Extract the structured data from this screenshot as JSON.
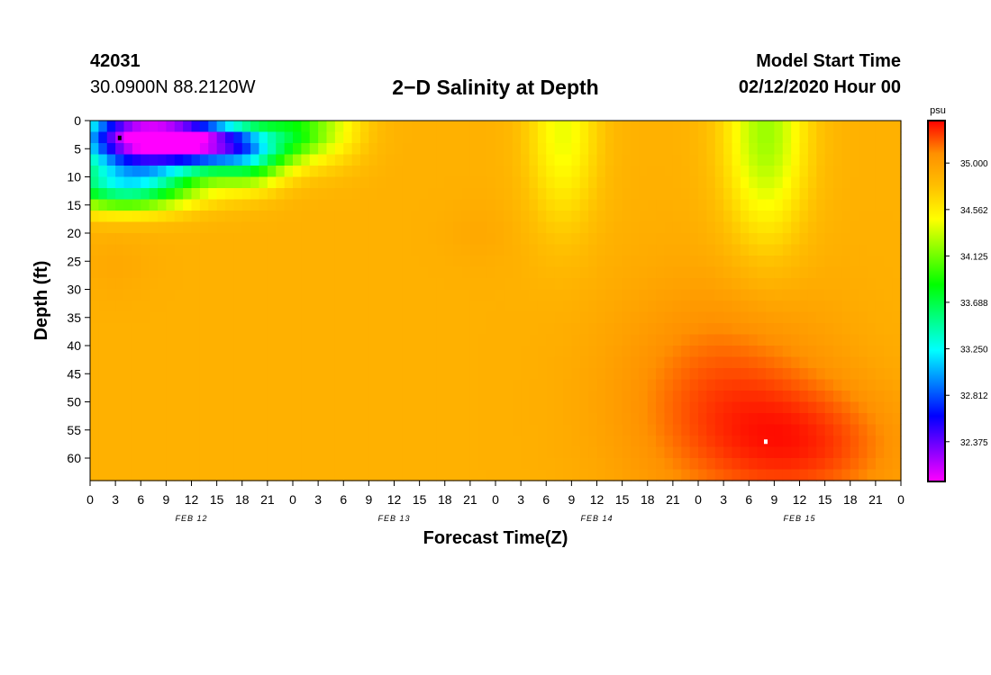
{
  "header": {
    "station_id": "42031",
    "coordinates": "30.0900N 88.2120W",
    "title": "2−D Salinity at Depth",
    "start_label": "Model Start Time",
    "start_value": "02/12/2020 Hour 00"
  },
  "chart_data": {
    "type": "heatmap",
    "title": "2−D Salinity at Depth",
    "xlabel": "Forecast Time(Z)",
    "ylabel": "Depth (ft)",
    "x_hours_range": [
      0,
      96
    ],
    "x_tick_step_hours": 3,
    "x_tick_labels": [
      "0",
      "3",
      "6",
      "9",
      "12",
      "15",
      "18",
      "21",
      "0",
      "3",
      "6",
      "9",
      "12",
      "15",
      "18",
      "21",
      "0",
      "3",
      "6",
      "9",
      "12",
      "15",
      "18",
      "21",
      "0",
      "3",
      "6",
      "9",
      "12",
      "15",
      "18",
      "21",
      "0"
    ],
    "date_labels": [
      {
        "label": "FEB 12",
        "hour": 12
      },
      {
        "label": "FEB 13",
        "hour": 36
      },
      {
        "label": "FEB 14",
        "hour": 60
      },
      {
        "label": "FEB 15",
        "hour": 84
      }
    ],
    "ylim": [
      0,
      64
    ],
    "y_inverted": true,
    "y_ticks": [
      0,
      5,
      10,
      15,
      20,
      25,
      30,
      35,
      40,
      45,
      50,
      55,
      60
    ],
    "colorbar": {
      "unit": "psu",
      "range": [
        32.0,
        35.4
      ],
      "tick_labels": [
        "35.000",
        "34.562",
        "34.125",
        "33.688",
        "33.250",
        "32.812",
        "32.375"
      ],
      "tick_values": [
        35.0,
        34.562,
        34.125,
        33.688,
        33.25,
        32.812,
        32.375
      ],
      "colors": [
        "#ff00ff",
        "#8000ff",
        "#0000ff",
        "#0080ff",
        "#00ffff",
        "#00ff80",
        "#00ff00",
        "#80ff00",
        "#ffff00",
        "#ffc000",
        "#ff9000",
        "#ff0000"
      ]
    },
    "markers": [
      {
        "hour": 3.5,
        "depth": 3,
        "color": "#000000"
      },
      {
        "hour": 80,
        "depth": 57,
        "color": "#ffffff"
      }
    ],
    "base_salinity": 34.88,
    "features": [
      {
        "hour": 6,
        "depth": 3,
        "sigma_h": 6,
        "sigma_d": 4.5,
        "amp": -2.9
      },
      {
        "hour": 14,
        "depth": 4,
        "sigma_h": 4,
        "sigma_d": 3,
        "amp": -1.5
      },
      {
        "hour": 19,
        "depth": 6,
        "sigma_h": 3,
        "sigma_d": 4,
        "amp": -1.0
      },
      {
        "hour": 24,
        "depth": 2,
        "sigma_h": 3,
        "sigma_d": 4,
        "amp": -0.8
      },
      {
        "hour": 4,
        "depth": 12,
        "sigma_h": 6,
        "sigma_d": 3,
        "amp": -1.2
      },
      {
        "hour": 29,
        "depth": 1,
        "sigma_h": 3,
        "sigma_d": 5,
        "amp": -0.35
      },
      {
        "hour": 56,
        "depth": 2,
        "sigma_h": 3,
        "sigma_d": 12,
        "amp": -0.45
      },
      {
        "hour": 80,
        "depth": 2,
        "sigma_h": 3.5,
        "sigma_d": 14,
        "amp": -0.65
      },
      {
        "hour": 75,
        "depth": 50,
        "sigma_h": 9,
        "sigma_d": 14,
        "amp": 0.35
      },
      {
        "hour": 86,
        "depth": 58,
        "sigma_h": 8,
        "sigma_d": 8,
        "amp": 0.3
      },
      {
        "hour": 3,
        "depth": 26,
        "sigma_h": 3,
        "sigma_d": 4,
        "amp": 0.05
      },
      {
        "hour": 46,
        "depth": 20,
        "sigma_h": 3,
        "sigma_d": 4,
        "amp": 0.05
      }
    ]
  }
}
